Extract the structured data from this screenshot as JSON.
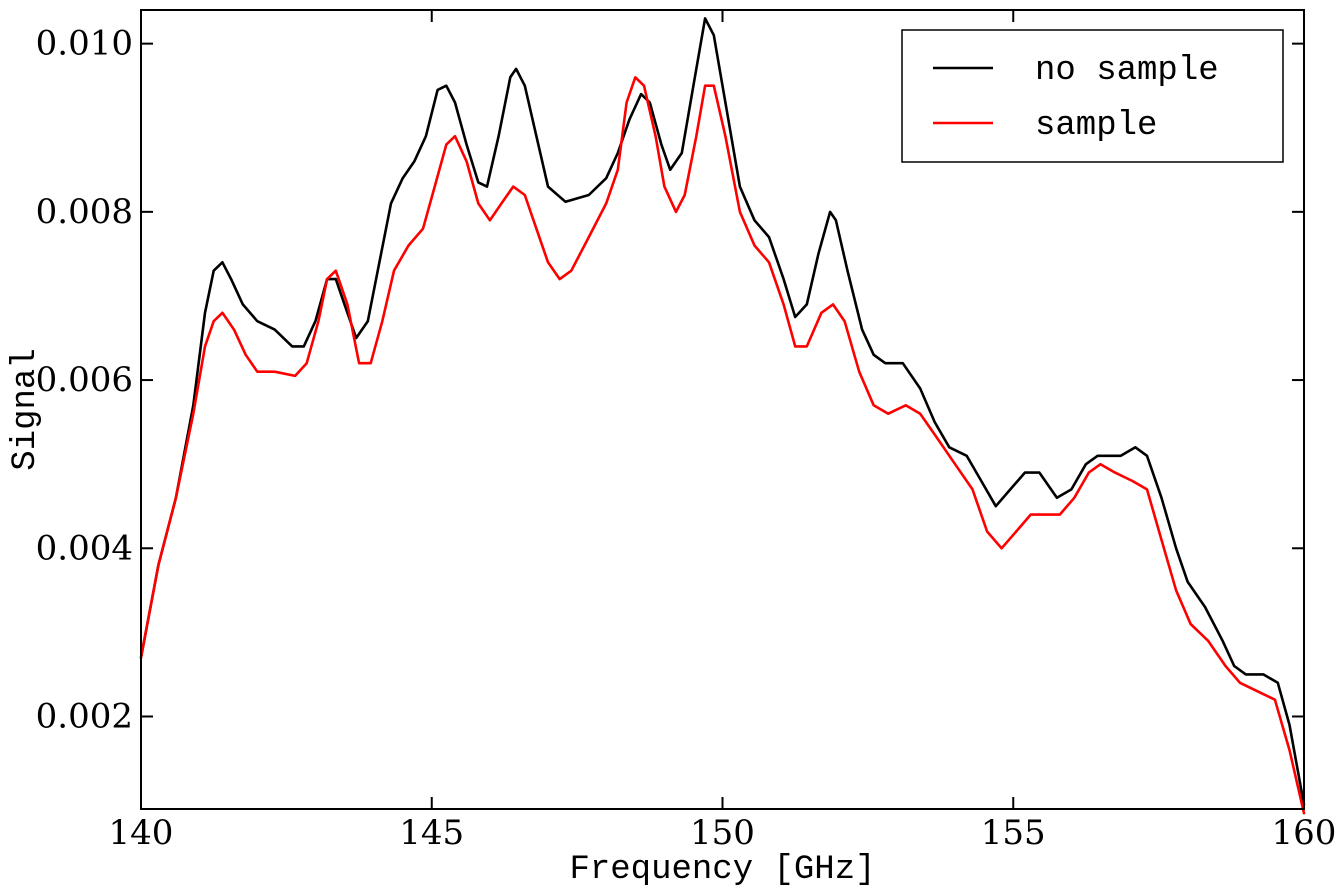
{
  "chart_data": {
    "type": "line",
    "xlabel": "Frequency [GHz]",
    "ylabel": "Signal",
    "xlim": [
      140,
      160
    ],
    "ylim": [
      0.0009,
      0.0104
    ],
    "x_ticks": [
      140,
      145,
      150,
      155,
      160
    ],
    "x_tick_labels": [
      "140",
      "145",
      "150",
      "155",
      "160"
    ],
    "y_ticks": [
      0.002,
      0.004,
      0.006,
      0.008,
      0.01
    ],
    "y_tick_labels": [
      "0.002",
      "0.004",
      "0.006",
      "0.008",
      "0.010"
    ],
    "grid": false,
    "legend_position": "top-right",
    "series": [
      {
        "name": "no sample",
        "color": "#000000",
        "points": [
          [
            140.0,
            0.0027
          ],
          [
            140.3,
            0.0038
          ],
          [
            140.6,
            0.0046
          ],
          [
            140.9,
            0.0057
          ],
          [
            141.1,
            0.0068
          ],
          [
            141.25,
            0.0073
          ],
          [
            141.4,
            0.0074
          ],
          [
            141.55,
            0.0072
          ],
          [
            141.75,
            0.0069
          ],
          [
            142.0,
            0.0067
          ],
          [
            142.3,
            0.0066
          ],
          [
            142.6,
            0.0064
          ],
          [
            142.8,
            0.0064
          ],
          [
            143.0,
            0.0067
          ],
          [
            143.2,
            0.0072
          ],
          [
            143.35,
            0.0072
          ],
          [
            143.5,
            0.0069
          ],
          [
            143.7,
            0.0065
          ],
          [
            143.9,
            0.0067
          ],
          [
            144.1,
            0.0074
          ],
          [
            144.3,
            0.0081
          ],
          [
            144.5,
            0.0084
          ],
          [
            144.7,
            0.0086
          ],
          [
            144.9,
            0.0089
          ],
          [
            145.1,
            0.00945
          ],
          [
            145.25,
            0.0095
          ],
          [
            145.4,
            0.0093
          ],
          [
            145.6,
            0.0088
          ],
          [
            145.8,
            0.00835
          ],
          [
            145.95,
            0.0083
          ],
          [
            146.15,
            0.0089
          ],
          [
            146.35,
            0.0096
          ],
          [
            146.45,
            0.0097
          ],
          [
            146.6,
            0.0095
          ],
          [
            146.8,
            0.0089
          ],
          [
            147.0,
            0.0083
          ],
          [
            147.3,
            0.00812
          ],
          [
            147.7,
            0.0082
          ],
          [
            148.0,
            0.0084
          ],
          [
            148.2,
            0.0087
          ],
          [
            148.4,
            0.0091
          ],
          [
            148.6,
            0.0094
          ],
          [
            148.75,
            0.0093
          ],
          [
            148.95,
            0.0088
          ],
          [
            149.1,
            0.0085
          ],
          [
            149.3,
            0.0087
          ],
          [
            149.5,
            0.0095
          ],
          [
            149.7,
            0.0103
          ],
          [
            149.85,
            0.0101
          ],
          [
            150.05,
            0.0093
          ],
          [
            150.3,
            0.0083
          ],
          [
            150.55,
            0.0079
          ],
          [
            150.8,
            0.0077
          ],
          [
            151.05,
            0.0072
          ],
          [
            151.25,
            0.00675
          ],
          [
            151.45,
            0.0069
          ],
          [
            151.65,
            0.0075
          ],
          [
            151.85,
            0.008
          ],
          [
            151.95,
            0.0079
          ],
          [
            152.15,
            0.0073
          ],
          [
            152.4,
            0.0066
          ],
          [
            152.6,
            0.0063
          ],
          [
            152.8,
            0.0062
          ],
          [
            153.1,
            0.0062
          ],
          [
            153.4,
            0.0059
          ],
          [
            153.65,
            0.0055
          ],
          [
            153.9,
            0.0052
          ],
          [
            154.2,
            0.0051
          ],
          [
            154.45,
            0.0048
          ],
          [
            154.7,
            0.0045
          ],
          [
            154.95,
            0.0047
          ],
          [
            155.2,
            0.0049
          ],
          [
            155.45,
            0.0049
          ],
          [
            155.75,
            0.0046
          ],
          [
            156.0,
            0.0047
          ],
          [
            156.25,
            0.005
          ],
          [
            156.45,
            0.0051
          ],
          [
            156.6,
            0.0051
          ],
          [
            156.85,
            0.0051
          ],
          [
            157.1,
            0.0052
          ],
          [
            157.3,
            0.0051
          ],
          [
            157.55,
            0.0046
          ],
          [
            157.8,
            0.004
          ],
          [
            158.0,
            0.0036
          ],
          [
            158.3,
            0.0033
          ],
          [
            158.6,
            0.0029
          ],
          [
            158.8,
            0.0026
          ],
          [
            159.0,
            0.0025
          ],
          [
            159.3,
            0.0025
          ],
          [
            159.55,
            0.0024
          ],
          [
            159.75,
            0.0019
          ],
          [
            160.0,
            0.00095
          ]
        ]
      },
      {
        "name": "sample",
        "color": "#ff0000",
        "points": [
          [
            140.0,
            0.0027
          ],
          [
            140.3,
            0.0038
          ],
          [
            140.6,
            0.0046
          ],
          [
            140.9,
            0.0056
          ],
          [
            141.1,
            0.0064
          ],
          [
            141.25,
            0.0067
          ],
          [
            141.4,
            0.0068
          ],
          [
            141.6,
            0.0066
          ],
          [
            141.8,
            0.0063
          ],
          [
            142.0,
            0.0061
          ],
          [
            142.3,
            0.0061
          ],
          [
            142.65,
            0.00605
          ],
          [
            142.85,
            0.0062
          ],
          [
            143.05,
            0.0067
          ],
          [
            143.2,
            0.0072
          ],
          [
            143.35,
            0.0073
          ],
          [
            143.55,
            0.0069
          ],
          [
            143.75,
            0.0062
          ],
          [
            143.95,
            0.0062
          ],
          [
            144.15,
            0.0067
          ],
          [
            144.35,
            0.0073
          ],
          [
            144.6,
            0.0076
          ],
          [
            144.85,
            0.0078
          ],
          [
            145.05,
            0.0083
          ],
          [
            145.25,
            0.0088
          ],
          [
            145.4,
            0.0089
          ],
          [
            145.6,
            0.0086
          ],
          [
            145.8,
            0.0081
          ],
          [
            146.0,
            0.0079
          ],
          [
            146.2,
            0.0081
          ],
          [
            146.4,
            0.0083
          ],
          [
            146.6,
            0.0082
          ],
          [
            146.8,
            0.0078
          ],
          [
            147.0,
            0.0074
          ],
          [
            147.2,
            0.0072
          ],
          [
            147.4,
            0.0073
          ],
          [
            147.7,
            0.0077
          ],
          [
            148.0,
            0.0081
          ],
          [
            148.2,
            0.0085
          ],
          [
            148.35,
            0.0093
          ],
          [
            148.5,
            0.0096
          ],
          [
            148.65,
            0.0095
          ],
          [
            148.85,
            0.0089
          ],
          [
            149.0,
            0.0083
          ],
          [
            149.2,
            0.008
          ],
          [
            149.35,
            0.0082
          ],
          [
            149.55,
            0.0089
          ],
          [
            149.7,
            0.0095
          ],
          [
            149.85,
            0.0095
          ],
          [
            150.05,
            0.0089
          ],
          [
            150.3,
            0.008
          ],
          [
            150.55,
            0.0076
          ],
          [
            150.8,
            0.0074
          ],
          [
            151.05,
            0.0069
          ],
          [
            151.25,
            0.0064
          ],
          [
            151.45,
            0.0064
          ],
          [
            151.7,
            0.0068
          ],
          [
            151.9,
            0.0069
          ],
          [
            152.1,
            0.0067
          ],
          [
            152.35,
            0.0061
          ],
          [
            152.6,
            0.0057
          ],
          [
            152.85,
            0.0056
          ],
          [
            153.15,
            0.0057
          ],
          [
            153.4,
            0.0056
          ],
          [
            153.7,
            0.0053
          ],
          [
            154.0,
            0.005
          ],
          [
            154.3,
            0.0047
          ],
          [
            154.55,
            0.0042
          ],
          [
            154.8,
            0.004
          ],
          [
            155.05,
            0.0042
          ],
          [
            155.3,
            0.0044
          ],
          [
            155.55,
            0.0044
          ],
          [
            155.8,
            0.0044
          ],
          [
            156.05,
            0.0046
          ],
          [
            156.3,
            0.0049
          ],
          [
            156.5,
            0.005
          ],
          [
            156.75,
            0.0049
          ],
          [
            157.05,
            0.0048
          ],
          [
            157.3,
            0.0047
          ],
          [
            157.55,
            0.0041
          ],
          [
            157.8,
            0.0035
          ],
          [
            158.05,
            0.0031
          ],
          [
            158.35,
            0.0029
          ],
          [
            158.65,
            0.0026
          ],
          [
            158.9,
            0.0024
          ],
          [
            159.2,
            0.0023
          ],
          [
            159.5,
            0.0022
          ],
          [
            159.75,
            0.0016
          ],
          [
            160.0,
            0.00085
          ]
        ]
      }
    ]
  }
}
